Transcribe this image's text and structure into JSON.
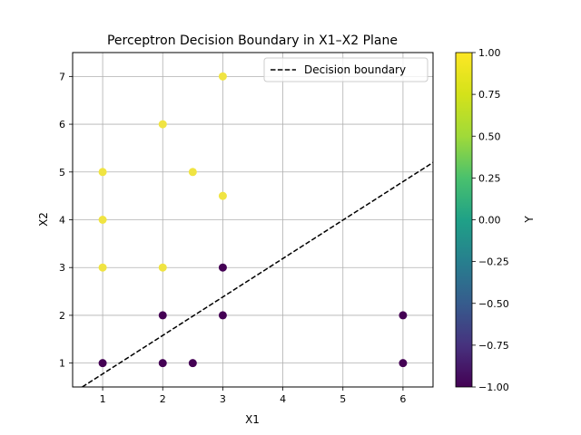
{
  "chart_data": {
    "type": "scatter",
    "title": "Perceptron Decision Boundary in X1–X2 Plane",
    "xlabel": "X1",
    "ylabel": "X2",
    "xlim": [
      0.5,
      6.5
    ],
    "ylim": [
      0.5,
      7.5
    ],
    "xticks": [
      1,
      2,
      3,
      4,
      5,
      6
    ],
    "yticks": [
      1,
      2,
      3,
      4,
      5,
      6,
      7
    ],
    "grid": true,
    "points": [
      {
        "x": 1,
        "y": 5,
        "label": 1
      },
      {
        "x": 1,
        "y": 4,
        "label": 1
      },
      {
        "x": 1,
        "y": 3,
        "label": 1
      },
      {
        "x": 2,
        "y": 6,
        "label": 1
      },
      {
        "x": 2,
        "y": 3,
        "label": 1
      },
      {
        "x": 2.5,
        "y": 5,
        "label": 1
      },
      {
        "x": 3,
        "y": 7,
        "label": 1
      },
      {
        "x": 3,
        "y": 4.5,
        "label": 1
      },
      {
        "x": 1,
        "y": 1,
        "label": -1
      },
      {
        "x": 2,
        "y": 2,
        "label": -1
      },
      {
        "x": 2,
        "y": 1,
        "label": -1
      },
      {
        "x": 2.5,
        "y": 1,
        "label": -1
      },
      {
        "x": 3,
        "y": 3,
        "label": -1
      },
      {
        "x": 3,
        "y": 2,
        "label": -1
      },
      {
        "x": 6,
        "y": 2,
        "label": -1
      },
      {
        "x": 6,
        "y": 1,
        "label": -1
      }
    ],
    "decision_boundary": {
      "name": "Decision boundary",
      "style": "dashed",
      "color": "#000000",
      "points": [
        [
          0.66,
          0.5
        ],
        [
          6.5,
          5.2
        ]
      ]
    },
    "legend": {
      "position": "top-right",
      "entries": [
        "Decision boundary"
      ]
    },
    "colorbar": {
      "label": "Y",
      "colormap": "viridis",
      "range": [
        -1.0,
        1.0
      ],
      "ticks": [
        "1.00",
        "0.75",
        "0.50",
        "0.25",
        "0.00",
        "−0.25",
        "−0.50",
        "−0.75",
        "−1.00"
      ],
      "tick_values": [
        1.0,
        0.75,
        0.5,
        0.25,
        0.0,
        -0.25,
        -0.5,
        -0.75,
        -1.0
      ]
    },
    "colors": {
      "positive": "#f0e442",
      "negative": "#440154",
      "grid": "#b0b0b0"
    }
  }
}
